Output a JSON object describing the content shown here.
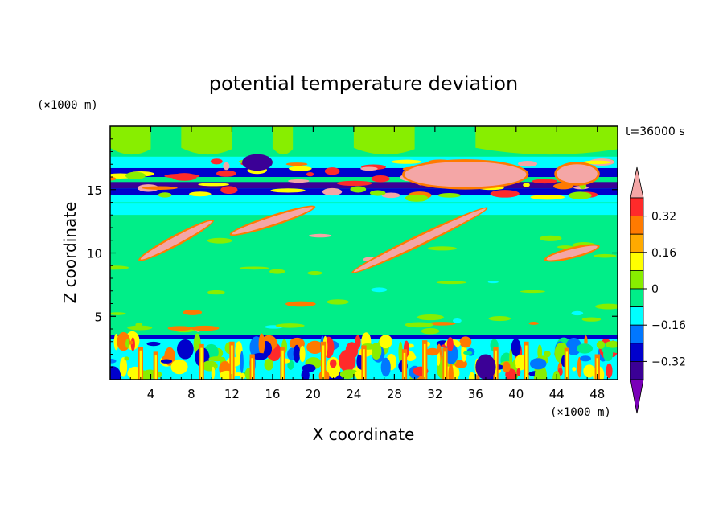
{
  "chart_data": {
    "type": "heatmap",
    "title": "potential temperature deviation",
    "xlabel": "X coordinate",
    "ylabel": "Z coordinate",
    "x_unit": "(×1000 m)",
    "y_unit": "(×1000 m)",
    "time_label": "t=36000 s",
    "xlim": [
      0,
      50
    ],
    "ylim": [
      0,
      20
    ],
    "x_ticks": [
      4,
      8,
      12,
      16,
      20,
      24,
      28,
      32,
      36,
      40,
      44,
      48
    ],
    "y_ticks": [
      5,
      10,
      15
    ],
    "colorbar": {
      "levels": [
        -0.4,
        -0.32,
        -0.24,
        -0.16,
        -0.08,
        0,
        0.08,
        0.16,
        0.24,
        0.32,
        0.4
      ],
      "tick_labels": [
        "0.32",
        "0.16",
        "0",
        "−0.16",
        "−0.32"
      ],
      "tick_values": [
        0.32,
        0.16,
        0,
        -0.16,
        -0.32
      ],
      "colors_top_to_bottom": [
        "#f4a6a6",
        "#ff2a2a",
        "#ff7a00",
        "#ffaa00",
        "#ffff00",
        "#88ee00",
        "#00ee88",
        "#00ffff",
        "#0077ff",
        "#0000cc",
        "#3b0096",
        "#7a00b8"
      ],
      "background_level_color": "#00ee88"
    },
    "bands": [
      {
        "z_range": [
          0,
          3.5
        ],
        "description": "turbulent boundary layer",
        "colors": [
          "#88ee00",
          "#00ffff",
          "#ffff00",
          "#ff7a00",
          "#0000cc",
          "#0077ff"
        ]
      },
      {
        "z_range": [
          3.5,
          12.5
        ],
        "dominant_color": "#00ee88"
      },
      {
        "z_range": [
          12.5,
          14
        ],
        "dominant_color": "#00ffff"
      },
      {
        "z_range": [
          14,
          17.5
        ],
        "description": "layered stripes",
        "colors": [
          "#3b0096",
          "#0000cc",
          "#ff7a00",
          "#f4a6a6",
          "#ffff00"
        ]
      },
      {
        "z_range": [
          17.5,
          20
        ],
        "dominant_color": "#88ee00"
      }
    ],
    "features": [
      {
        "type": "pink-streak",
        "x": [
          12,
          20
        ],
        "z": [
          11.5,
          13.6
        ]
      },
      {
        "type": "pink-streak",
        "x": [
          24,
          37
        ],
        "z": [
          8.5,
          13.5
        ]
      },
      {
        "type": "pink-streak",
        "x": [
          3,
          10
        ],
        "z": [
          9.5,
          12.5
        ]
      },
      {
        "type": "pink-streak",
        "x": [
          43,
          48
        ],
        "z": [
          9.5,
          10.5
        ]
      },
      {
        "type": "pink-blob",
        "x": [
          29,
          41
        ],
        "z": [
          15.2,
          17.2
        ]
      },
      {
        "type": "pink-blob",
        "x": [
          44,
          48
        ],
        "z": [
          15.5,
          17
        ]
      },
      {
        "type": "dark-blob",
        "x": [
          36,
          38
        ],
        "z": [
          0,
          2
        ]
      },
      {
        "type": "dark-blob",
        "x": [
          13,
          16
        ],
        "z": [
          16.5,
          17.8
        ]
      }
    ]
  }
}
